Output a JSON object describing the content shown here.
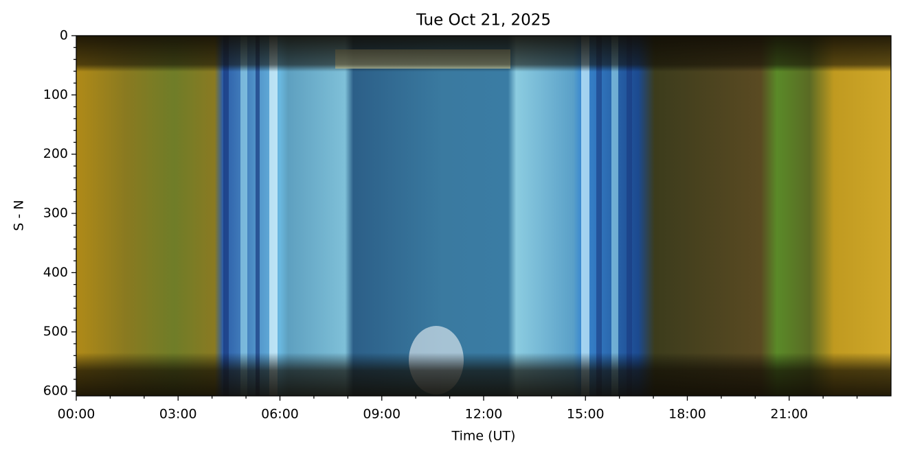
{
  "chart_data": {
    "type": "keogram",
    "title": "Tue Oct 21, 2025",
    "xlabel": "Time (UT)",
    "ylabel": "S - N",
    "xlim": [
      0,
      24
    ],
    "xticks": [
      {
        "value": 0,
        "label": "00:00"
      },
      {
        "value": 3,
        "label": "03:00"
      },
      {
        "value": 6,
        "label": "06:00"
      },
      {
        "value": 9,
        "label": "09:00"
      },
      {
        "value": 12,
        "label": "12:00"
      },
      {
        "value": 15,
        "label": "15:00"
      },
      {
        "value": 18,
        "label": "18:00"
      },
      {
        "value": 21,
        "label": "21:00"
      }
    ],
    "xminorticks": [
      1,
      2,
      4,
      5,
      7,
      8,
      10,
      11,
      13,
      14,
      16,
      17,
      19,
      20,
      22,
      23
    ],
    "ylim": [
      608,
      0
    ],
    "yticks": [
      0,
      100,
      200,
      300,
      400,
      500,
      600
    ],
    "yminorticks": [
      20,
      40,
      60,
      80,
      120,
      140,
      160,
      180,
      220,
      240,
      260,
      280,
      320,
      340,
      360,
      380,
      420,
      440,
      460,
      480,
      520,
      540,
      560,
      580
    ]
  }
}
